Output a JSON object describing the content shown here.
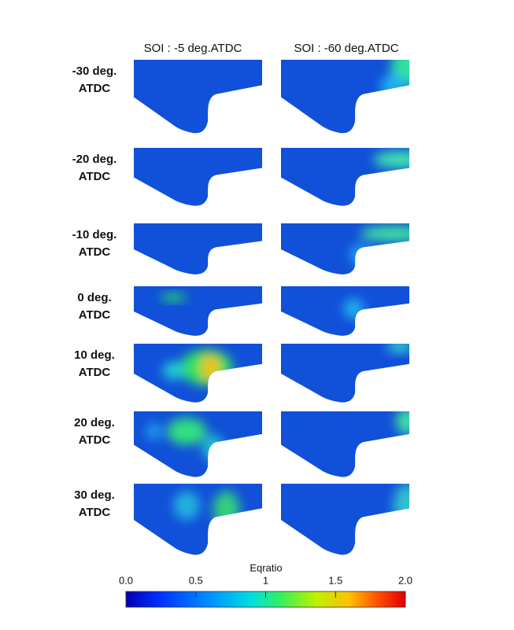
{
  "columns": [
    "SOI : -5 deg.ATDC",
    "SOI : -60 deg.ATDC"
  ],
  "rows": [
    {
      "lines": [
        "-30 deg.",
        "ATDC"
      ]
    },
    {
      "lines": [
        "-20 deg.",
        "ATDC"
      ]
    },
    {
      "lines": [
        "-10 deg.",
        "ATDC"
      ]
    },
    {
      "lines": [
        "0 deg.",
        "ATDC"
      ]
    },
    {
      "lines": [
        "10 deg.",
        "ATDC"
      ]
    },
    {
      "lines": [
        "20 deg.",
        "ATDC"
      ]
    },
    {
      "lines": [
        "30 deg.",
        "ATDC"
      ]
    }
  ],
  "colorbar": {
    "title": "Eqratio",
    "ticks": [
      {
        "value": 0,
        "label": "0.0"
      },
      {
        "value": 0.5,
        "label": "0.5"
      },
      1,
      1.5,
      {
        "value": 2,
        "label": "2.0"
      }
    ]
  }
}
